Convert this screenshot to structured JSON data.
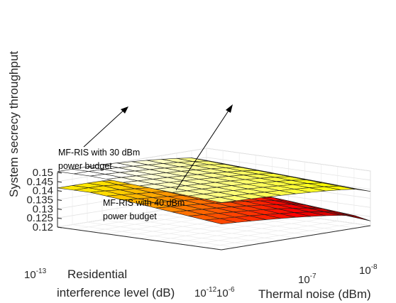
{
  "chart_data": {
    "type": "surface3d",
    "title": "",
    "ylabel": "System secrecy throughput",
    "xlabel_lines": [
      "Residential",
      "interference level (dB)"
    ],
    "thermal_label": "Thermal noise (dBm)",
    "zlim": [
      0.12,
      0.15
    ],
    "z_ticks": [
      "0.12",
      "0.125",
      "0.13",
      "0.135",
      "0.14",
      "0.145",
      "0.15"
    ],
    "residential_ticks": [
      {
        "base": "10",
        "exp": "-13"
      },
      {
        "base": "10",
        "exp": "-12"
      }
    ],
    "thermal_ticks": [
      {
        "base": "10",
        "exp": "-6"
      },
      {
        "base": "10",
        "exp": "-7"
      },
      {
        "base": "10",
        "exp": "-8"
      }
    ],
    "residential_range_exp": [
      -13,
      -12
    ],
    "thermal_range_exp": [
      -8,
      -6
    ],
    "grid": true,
    "colormap": "hot",
    "series": [
      {
        "name": "MF-RIS with 30 dBm power budget",
        "residential_exp": [
          -13,
          -12.9,
          -12.8,
          -12.7,
          -12.6,
          -12.5,
          -12.4,
          -12.3,
          -12.2,
          -12.1,
          -12
        ],
        "thermal_exp": [
          -8,
          -7.8,
          -7.6,
          -7.4,
          -7.2,
          -7,
          -6.8,
          -6.6,
          -6.4,
          -6.2,
          -6
        ],
        "z_min": 0.1205,
        "z_max": 0.1415
      },
      {
        "name": "MF-RIS with 40 dBm power budget",
        "residential_exp": [
          -13,
          -12.9,
          -12.8,
          -12.7,
          -12.6,
          -12.5,
          -12.4,
          -12.3,
          -12.2,
          -12.1,
          -12
        ],
        "thermal_exp": [
          -8,
          -7.8,
          -7.6,
          -7.4,
          -7.2,
          -7,
          -6.8,
          -6.6,
          -6.4,
          -6.2,
          -6
        ],
        "z_min": 0.1375,
        "z_max": 0.1505
      }
    ],
    "annotations": [
      {
        "lines": [
          "MF-RIS with 30 dBm",
          "power budget"
        ]
      },
      {
        "lines": [
          "MF-RIS with 40 dBm",
          "power budget"
        ]
      }
    ]
  }
}
